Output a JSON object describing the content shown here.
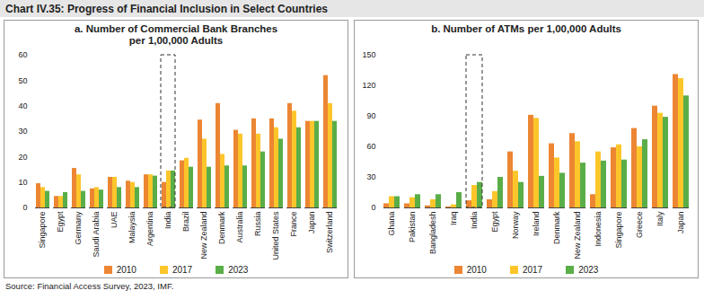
{
  "title": "Chart IV.35: Progress of Financial Inclusion in Select Countries",
  "source": "Source: Financial Access Survey, 2023, IMF.",
  "chart_data": [
    {
      "type": "bar",
      "title": "a. Number of Commercial Bank Branches per 1,00,000 Adults",
      "categories": [
        "Singapore",
        "Egypt",
        "Germany",
        "Saudi Arabia",
        "UAE",
        "Malaysia",
        "Argentina",
        "India",
        "Brazil",
        "New Zealand",
        "Denmark",
        "Australia",
        "Russia",
        "United States",
        "France",
        "Japan",
        "Switzerland"
      ],
      "series": [
        {
          "name": "2010",
          "color": "#ec8633",
          "values": [
            9.5,
            4.5,
            15.5,
            7.5,
            12,
            10.5,
            13,
            10,
            18.5,
            34.5,
            41,
            30.5,
            35,
            35,
            41,
            34,
            52
          ]
        },
        {
          "name": "2017",
          "color": "#fcc62b",
          "values": [
            8,
            4.5,
            13,
            8,
            12,
            10,
            13,
            14.5,
            19.5,
            27,
            21,
            29,
            29,
            31.5,
            38,
            34,
            41
          ]
        },
        {
          "name": "2023",
          "color": "#5aae48",
          "values": [
            6.5,
            6,
            6.5,
            7,
            8,
            8,
            12.5,
            14.5,
            16,
            16,
            16.5,
            16.5,
            22,
            27,
            31.5,
            34,
            34
          ]
        }
      ],
      "ylim": [
        0,
        60
      ],
      "yticks": [
        0,
        10,
        20,
        30,
        40,
        50,
        60
      ],
      "grid": false,
      "legend": "bottom"
    },
    {
      "type": "bar",
      "title": "b. Number of ATMs per 1,00,000 Adults",
      "categories": [
        "Ghana",
        "Pakistan",
        "Bangladesh",
        "Iraq",
        "India",
        "Egypt",
        "Norway",
        "Ireland",
        "Denmark",
        "New Zealand",
        "Indonesia",
        "Singapore",
        "Greece",
        "Italy",
        "Japan"
      ],
      "series": [
        {
          "name": "2010",
          "color": "#ec8633",
          "values": [
            4,
            4,
            2,
            1,
            7,
            8,
            55,
            91,
            63,
            73,
            13,
            59,
            78,
            100,
            131
          ]
        },
        {
          "name": "2017",
          "color": "#fcc62b",
          "values": [
            11,
            10,
            8,
            3,
            22,
            16,
            36,
            88,
            49,
            65,
            55,
            62,
            60,
            93,
            127
          ]
        },
        {
          "name": "2023",
          "color": "#5aae48",
          "values": [
            11,
            13,
            13,
            15,
            25,
            30,
            25,
            31,
            34,
            44,
            46,
            47,
            67,
            89,
            110
          ]
        }
      ],
      "ylim": [
        0,
        150
      ],
      "yticks": [
        0,
        30,
        60,
        90,
        120,
        150
      ],
      "grid": false,
      "legend": "bottom"
    }
  ]
}
